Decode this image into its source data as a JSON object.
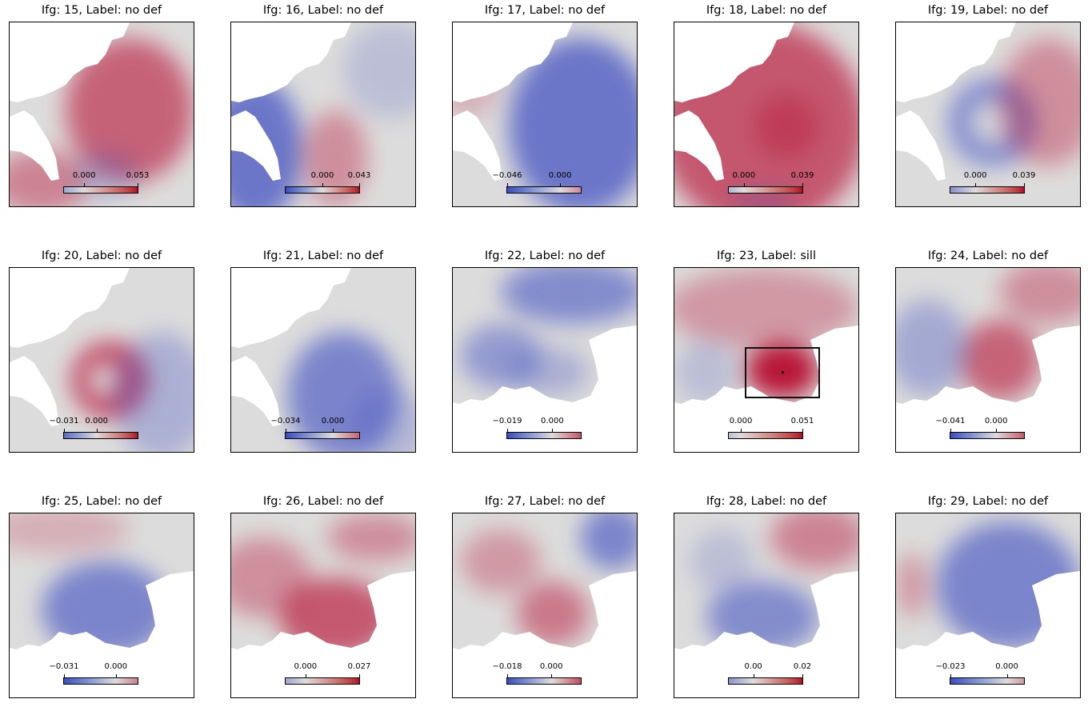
{
  "colors": {
    "blue": "#3b4cc0",
    "mid": "#dddcdc",
    "red": "#b40426",
    "box": "#111111"
  },
  "panels": [
    {
      "title": "Ifg: 15, Label: no def",
      "cbar_min": -0.02,
      "cbar_max": 0.053,
      "ticks": [
        {
          "label": "0.000",
          "value": 0.0
        },
        {
          "label": "0.053",
          "value": 0.053
        }
      ],
      "pattern": "red-center",
      "box": false
    },
    {
      "title": "Ifg: 16, Label: no def",
      "cbar_min": -0.043,
      "cbar_max": 0.043,
      "ticks": [
        {
          "label": "0.000",
          "value": 0.0
        },
        {
          "label": "0.043",
          "value": 0.043
        }
      ],
      "pattern": "blue-left",
      "box": false
    },
    {
      "title": "Ifg: 17, Label: no def",
      "cbar_min": -0.046,
      "cbar_max": 0.018,
      "ticks": [
        {
          "label": "−0.046",
          "value": -0.046
        },
        {
          "label": "0.000",
          "value": 0.0
        }
      ],
      "pattern": "blue-right",
      "box": false
    },
    {
      "title": "Ifg: 18, Label: no def",
      "cbar_min": -0.01,
      "cbar_max": 0.039,
      "ticks": [
        {
          "label": "0.000",
          "value": 0.0
        },
        {
          "label": "0.039",
          "value": 0.039
        }
      ],
      "pattern": "red-all",
      "box": false
    },
    {
      "title": "Ifg: 19, Label: no def",
      "cbar_min": -0.02,
      "cbar_max": 0.039,
      "ticks": [
        {
          "label": "0.000",
          "value": 0.0
        },
        {
          "label": "0.039",
          "value": 0.039
        }
      ],
      "pattern": "ring-blue",
      "box": false
    },
    {
      "title": "Ifg: 20, Label: no def",
      "cbar_min": -0.031,
      "cbar_max": 0.039,
      "ticks": [
        {
          "label": "−0.031",
          "value": -0.031
        },
        {
          "label": "0.000",
          "value": 0.0
        }
      ],
      "pattern": "ring-red",
      "box": false
    },
    {
      "title": "Ifg: 21, Label: no def",
      "cbar_min": -0.034,
      "cbar_max": 0.019,
      "ticks": [
        {
          "label": "−0.034",
          "value": -0.034
        },
        {
          "label": "0.000",
          "value": 0.0
        }
      ],
      "pattern": "blue-center",
      "box": false
    },
    {
      "title": "Ifg: 22, Label: no def",
      "cbar_min": -0.019,
      "cbar_max": 0.012,
      "ticks": [
        {
          "label": "−0.019",
          "value": -0.019
        },
        {
          "label": "0.000",
          "value": 0.0
        }
      ],
      "pattern": "dome-blue",
      "box": false
    },
    {
      "title": "Ifg: 23, Label: sill",
      "cbar_min": -0.01,
      "cbar_max": 0.051,
      "ticks": [
        {
          "label": "0.000",
          "value": 0.0
        },
        {
          "label": "0.051",
          "value": 0.051
        }
      ],
      "pattern": "dome-sill",
      "box": true
    },
    {
      "title": "Ifg: 24, Label: no def",
      "cbar_min": -0.041,
      "cbar_max": 0.025,
      "ticks": [
        {
          "label": "−0.041",
          "value": -0.041
        },
        {
          "label": "0.000",
          "value": 0.0
        }
      ],
      "pattern": "dome-red",
      "box": false
    },
    {
      "title": "Ifg: 25, Label: no def",
      "cbar_min": -0.031,
      "cbar_max": 0.013,
      "ticks": [
        {
          "label": "−0.031",
          "value": -0.031
        },
        {
          "label": "0.000",
          "value": 0.0
        }
      ],
      "pattern": "dome-blue2",
      "box": false
    },
    {
      "title": "Ifg: 26, Label: no def",
      "cbar_min": -0.01,
      "cbar_max": 0.027,
      "ticks": [
        {
          "label": "0.000",
          "value": 0.0
        },
        {
          "label": "0.027",
          "value": 0.027
        }
      ],
      "pattern": "dome-red2",
      "box": false
    },
    {
      "title": "Ifg: 27, Label: no def",
      "cbar_min": -0.018,
      "cbar_max": 0.012,
      "ticks": [
        {
          "label": "−0.018",
          "value": -0.018
        },
        {
          "label": "0.000",
          "value": 0.0
        }
      ],
      "pattern": "dome-mixed",
      "box": false
    },
    {
      "title": "Ifg: 28, Label: no def",
      "cbar_min": -0.01,
      "cbar_max": 0.02,
      "ticks": [
        {
          "label": "0.00",
          "value": 0.0
        },
        {
          "label": "0.02",
          "value": 0.02
        }
      ],
      "pattern": "dome-blue3",
      "box": false
    },
    {
      "title": "Ifg: 29, Label: no def",
      "cbar_min": -0.023,
      "cbar_max": 0.007,
      "ticks": [
        {
          "label": "−0.023",
          "value": -0.023
        },
        {
          "label": "0.000",
          "value": 0.0
        }
      ],
      "pattern": "dome-blue4",
      "box": false
    }
  ]
}
